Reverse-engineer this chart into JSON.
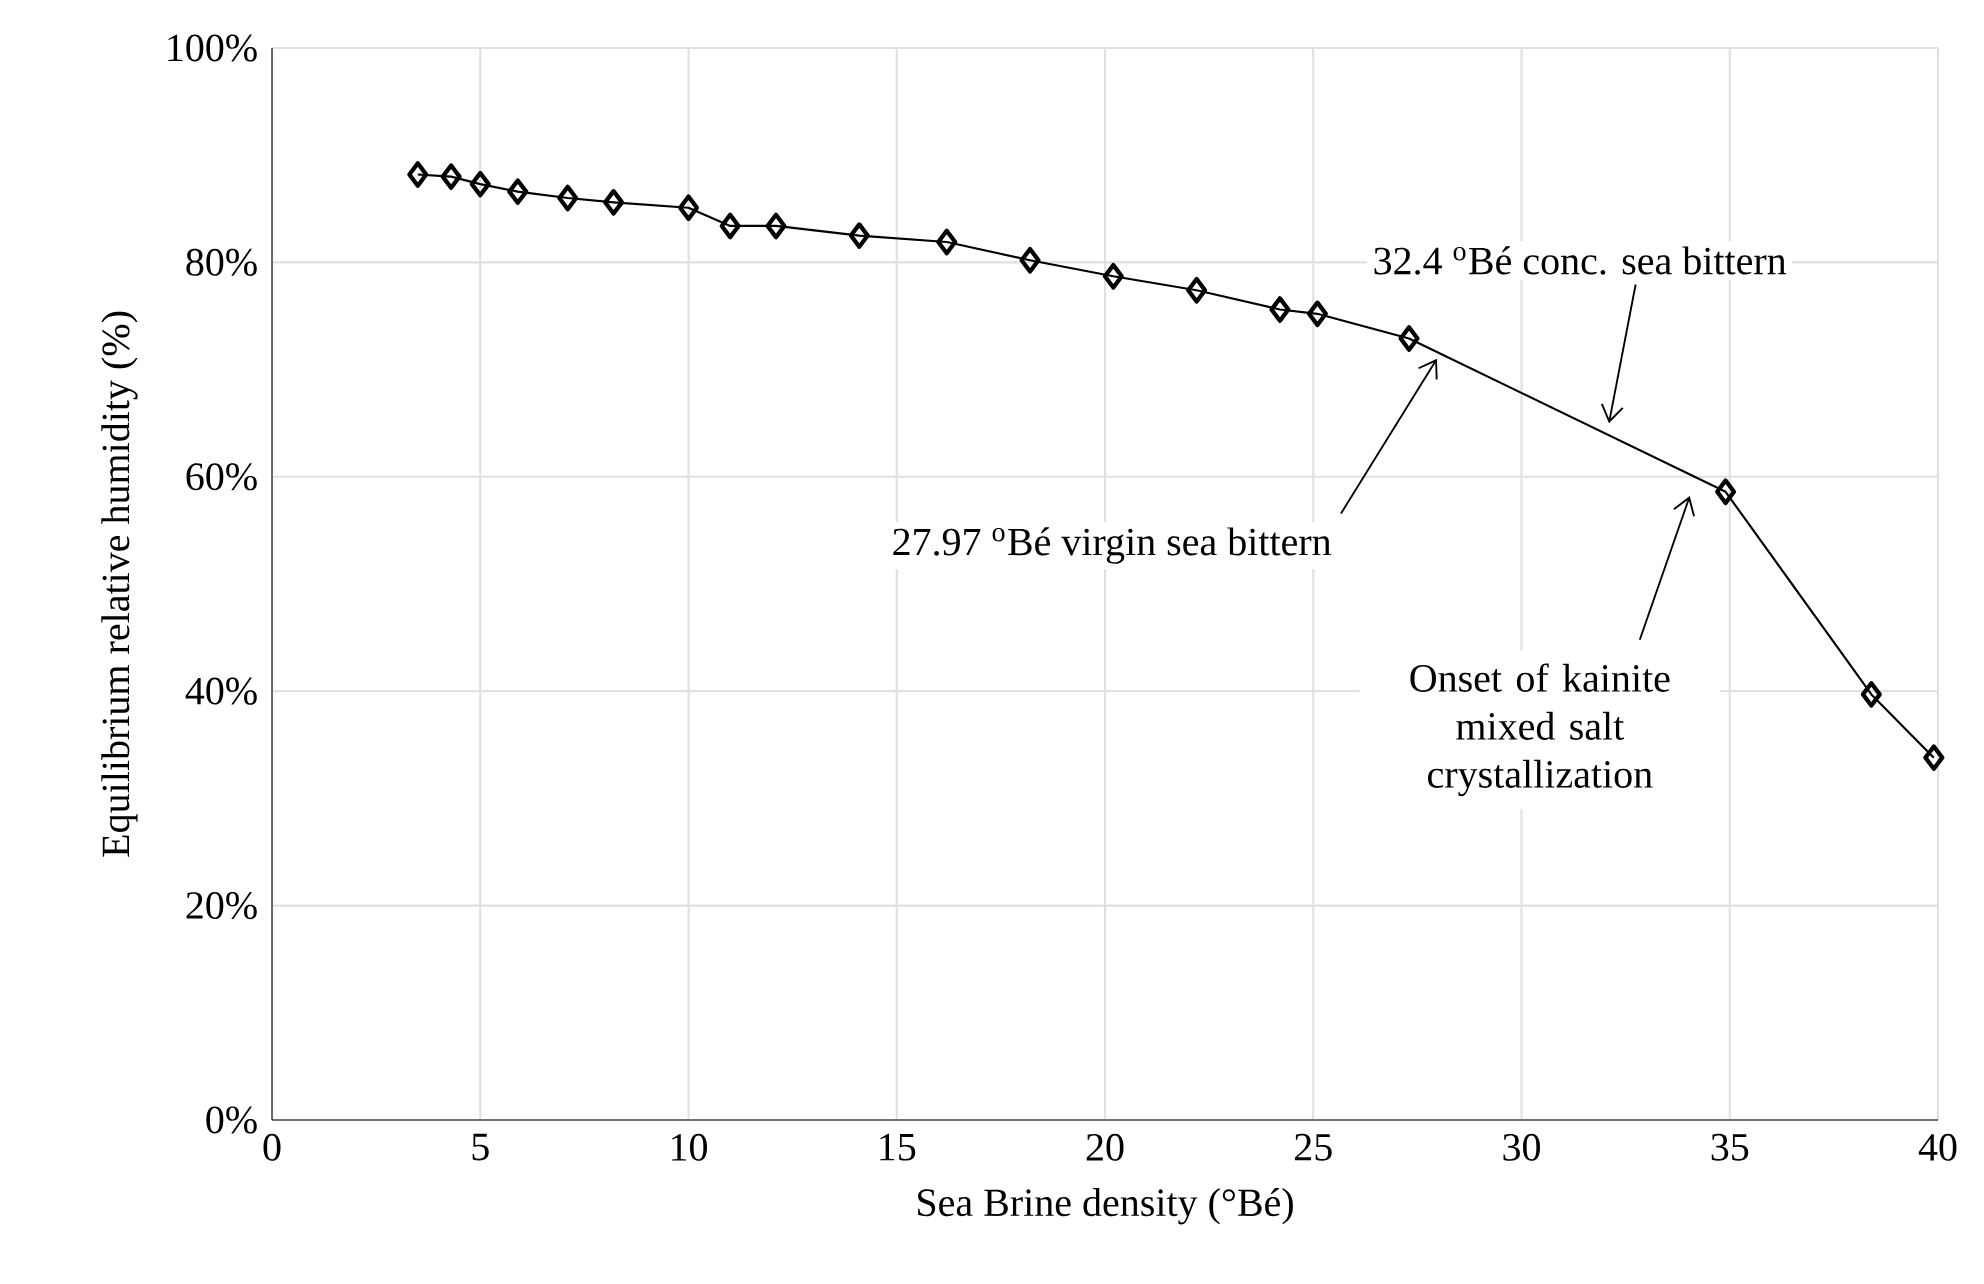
{
  "chart_data": {
    "type": "line",
    "xlabel": "Sea Brine density (°Bé)",
    "ylabel": "Equilibrium relative humidity (%)",
    "x": [
      3.5,
      4.3,
      5.0,
      5.9,
      7.1,
      8.2,
      10.0,
      11.0,
      12.1,
      14.1,
      16.2,
      18.2,
      20.2,
      22.2,
      24.2,
      25.1,
      27.3,
      34.9,
      38.4,
      39.9
    ],
    "series": [
      {
        "color": "#000000",
        "values": [
          88.2,
          88.0,
          87.3,
          86.6,
          86.0,
          85.6,
          85.1,
          83.4,
          83.4,
          82.5,
          81.9,
          80.2,
          78.7,
          77.4,
          75.6,
          75.2,
          72.9,
          58.6,
          39.7,
          33.8
        ]
      }
    ],
    "xlim": [
      0,
      40
    ],
    "xticks": [
      0,
      5,
      10,
      15,
      20,
      25,
      30,
      35,
      40
    ],
    "ylim": [
      0,
      100
    ],
    "yticks": [
      {
        "value": 0,
        "label": "0%"
      },
      {
        "value": 20,
        "label": "20%"
      },
      {
        "value": 40,
        "label": "40%"
      },
      {
        "value": 60,
        "label": "60%"
      },
      {
        "value": 80,
        "label": "80%"
      },
      {
        "value": 100,
        "label": "100%"
      }
    ],
    "grid": true,
    "marker": "diamond",
    "line_style": "solid",
    "annotations": [
      {
        "text": "32.4 $^{o}$Bé conc. sea bittern",
        "x": 32.1,
        "y": 65
      },
      {
        "text": "27.97 $^{o}$Bé virgin sea bittern",
        "x": 27.97,
        "y": 71
      },
      "Onset of kainite mixed salt crystallization"
    ]
  }
}
